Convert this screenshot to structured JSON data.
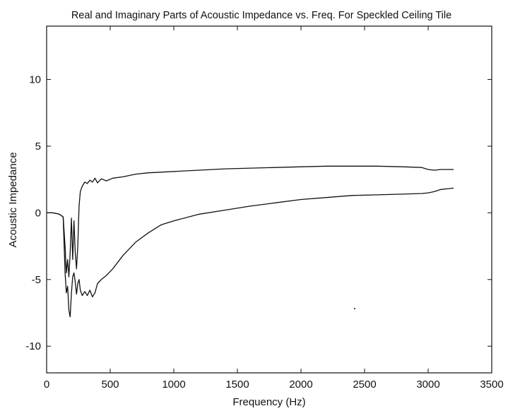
{
  "chart_data": {
    "type": "line",
    "title": "Real and Imaginary Parts of Acoustic Impedance vs. Freq. For Speckled Ceiling Tile",
    "xlabel": "Frequency (Hz)",
    "ylabel": "Acoustic Impedance",
    "xlim": [
      0,
      3500
    ],
    "ylim": [
      -12,
      14
    ],
    "xticks": [
      0,
      500,
      1000,
      1500,
      2000,
      2500,
      3000,
      3500
    ],
    "yticks": [
      -10,
      -5,
      0,
      5,
      10
    ],
    "grid": false,
    "legend": "none",
    "line_color": "#111111",
    "series": [
      {
        "x": [
          0,
          50,
          100,
          130,
          145,
          155,
          165,
          175,
          185,
          195,
          205,
          215,
          225,
          235,
          245,
          255,
          265,
          280,
          300,
          320,
          340,
          360,
          380,
          400,
          430,
          470,
          520,
          600,
          700,
          800,
          900,
          1000,
          1200,
          1400,
          1600,
          1800,
          2000,
          2200,
          2400,
          2600,
          2800,
          2950,
          3000,
          3050,
          3100,
          3200
        ],
        "y": [
          0,
          0,
          -0.1,
          -0.3,
          -2.5,
          -4.5,
          -3.5,
          -4.8,
          -3,
          -0.4,
          -3.5,
          -0.6,
          -3,
          -4.2,
          -2.5,
          0.5,
          1.6,
          2.0,
          2.3,
          2.2,
          2.45,
          2.3,
          2.6,
          2.25,
          2.55,
          2.4,
          2.6,
          2.7,
          2.9,
          3.0,
          3.05,
          3.1,
          3.2,
          3.3,
          3.35,
          3.4,
          3.45,
          3.5,
          3.5,
          3.5,
          3.45,
          3.4,
          3.25,
          3.2,
          3.25,
          3.25
        ]
      },
      {
        "x": [
          0,
          50,
          100,
          130,
          145,
          155,
          165,
          175,
          185,
          195,
          205,
          215,
          225,
          235,
          245,
          255,
          265,
          280,
          300,
          320,
          340,
          360,
          380,
          400,
          430,
          470,
          520,
          600,
          700,
          800,
          900,
          1000,
          1200,
          1400,
          1600,
          1800,
          2000,
          2200,
          2400,
          2600,
          2800,
          2950,
          3000,
          3050,
          3100,
          3200
        ],
        "y": [
          0,
          0,
          -0.1,
          -0.3,
          -4.5,
          -6,
          -5.5,
          -7.3,
          -7.8,
          -6,
          -4.8,
          -4.5,
          -5.2,
          -6.1,
          -5.3,
          -5,
          -5.8,
          -6.2,
          -5.9,
          -6.2,
          -5.8,
          -6.3,
          -6.0,
          -5.3,
          -5.0,
          -4.7,
          -4.2,
          -3.2,
          -2.2,
          -1.5,
          -0.9,
          -0.6,
          -0.1,
          0.2,
          0.5,
          0.75,
          1.0,
          1.15,
          1.3,
          1.35,
          1.4,
          1.45,
          1.5,
          1.6,
          1.75,
          1.85
        ]
      }
    ]
  }
}
